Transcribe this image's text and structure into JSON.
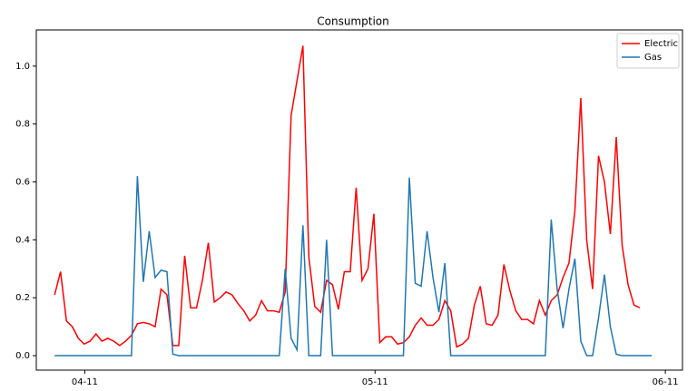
{
  "chart_data": {
    "type": "line",
    "title": "Consumption",
    "legend": "upper right",
    "grid": false,
    "xlim": [
      -3.1,
      106.2
    ],
    "xticks": [
      {
        "value": 5.1,
        "label": "04-11"
      },
      {
        "value": 54.2,
        "label": "05-11"
      },
      {
        "value": 103.3,
        "label": "06-11"
      }
    ],
    "ylim": [
      -0.05,
      1.125
    ],
    "yticks": [
      {
        "value": 0,
        "label": "0.0"
      },
      {
        "value": 0.2,
        "label": "0.2"
      },
      {
        "value": 0.4,
        "label": "0.4"
      },
      {
        "value": 0.6,
        "label": "0.6"
      },
      {
        "value": 0.8,
        "label": "0.8"
      },
      {
        "value": 1,
        "label": "1.0"
      }
    ],
    "series": [
      {
        "name": "Electric",
        "color": "#ff0000",
        "values": [
          0.21,
          0.29,
          0.12,
          0.1,
          0.06,
          0.04,
          0.05,
          0.075,
          0.05,
          0.06,
          0.05,
          0.035,
          0.05,
          0.07,
          0.11,
          0.115,
          0.11,
          0.1,
          0.23,
          0.21,
          0.035,
          0.035,
          0.345,
          0.165,
          0.165,
          0.26,
          0.39,
          0.185,
          0.2,
          0.22,
          0.21,
          0.18,
          0.155,
          0.12,
          0.14,
          0.19,
          0.155,
          0.155,
          0.15,
          0.22,
          0.83,
          0.95,
          1.07,
          0.34,
          0.17,
          0.15,
          0.26,
          0.245,
          0.16,
          0.29,
          0.29,
          0.58,
          0.26,
          0.3,
          0.49,
          0.045,
          0.065,
          0.065,
          0.04,
          0.045,
          0.065,
          0.105,
          0.13,
          0.105,
          0.105,
          0.125,
          0.19,
          0.155,
          0.03,
          0.04,
          0.06,
          0.175,
          0.24,
          0.11,
          0.105,
          0.14,
          0.315,
          0.225,
          0.155,
          0.125,
          0.125,
          0.11,
          0.19,
          0.14,
          0.19,
          0.21,
          0.27,
          0.32,
          0.5,
          0.89,
          0.4,
          0.23,
          0.69,
          0.6,
          0.42,
          0.755,
          0.38,
          0.245,
          0.175,
          0.165
        ]
      },
      {
        "name": "Gas",
        "color": "#1f77b4",
        "values": [
          0,
          0,
          0,
          0,
          0,
          0,
          0,
          0,
          0,
          0,
          0,
          0,
          0,
          0,
          0.62,
          0.255,
          0.43,
          0.27,
          0.295,
          0.29,
          0.005,
          0,
          0,
          0,
          0,
          0,
          0,
          0,
          0,
          0,
          0,
          0,
          0,
          0,
          0,
          0,
          0,
          0,
          0,
          0.3,
          0.06,
          0.02,
          0.45,
          0,
          0,
          0,
          0.4,
          0,
          0,
          0,
          0,
          0,
          0,
          0,
          0,
          0,
          0,
          0,
          0,
          0,
          0.615,
          0.25,
          0.24,
          0.43,
          0.27,
          0.15,
          0.32,
          0,
          0,
          0,
          0,
          0,
          0,
          0,
          0,
          0,
          0,
          0,
          0,
          0,
          0,
          0,
          0,
          0,
          0.47,
          0.23,
          0.095,
          0.23,
          0.335,
          0.05,
          0,
          0,
          0.13,
          0.28,
          0.1,
          0.005,
          0,
          0,
          0,
          0,
          0,
          0
        ]
      }
    ]
  }
}
